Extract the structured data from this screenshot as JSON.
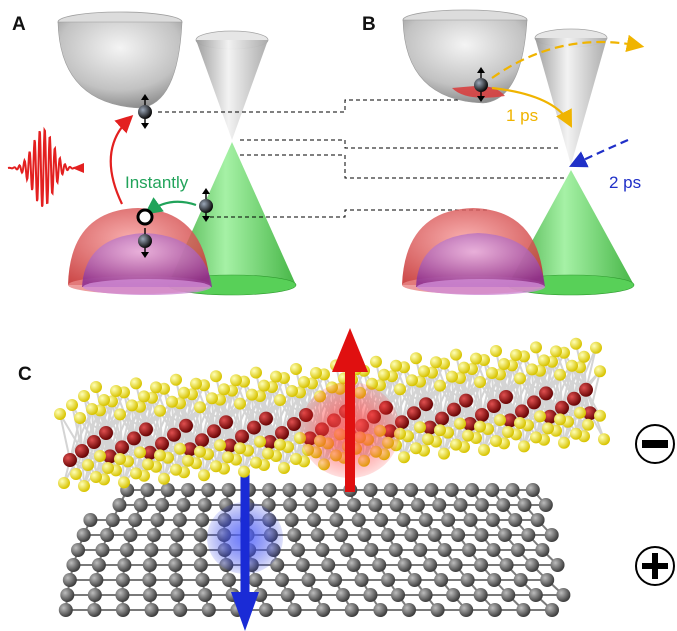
{
  "panels": {
    "a": {
      "label": "A",
      "annotation": "Instantly"
    },
    "b": {
      "label": "B",
      "annotation_1": "1 ps",
      "annotation_2": "2 ps"
    },
    "c": {
      "label": "C",
      "sign_top": "minus",
      "sign_bottom": "plus"
    }
  },
  "colors": {
    "valence_cone": "#3fcc3f",
    "conduction_band": "#b9b9b9",
    "red_band": "#d93a3a",
    "purple_band": "#9a3aa0",
    "laser_pulse": "#e32020",
    "arrow_red": "#e32020",
    "arrow_green": "#21a35a",
    "arrow_orange": "#f0b400",
    "arrow_blue": "#2030c8",
    "sulfur_atom": "#f2e600",
    "metal_atom": "#8c0d0d",
    "carbon_atom": "#6e6e6e",
    "spin_up_arrow": "#e01010",
    "spin_down_arrow": "#1a2bd6"
  },
  "icons": [
    "laser-pulse-icon",
    "electron-icon",
    "hole-icon",
    "minus-sign-icon",
    "plus-sign-icon"
  ]
}
